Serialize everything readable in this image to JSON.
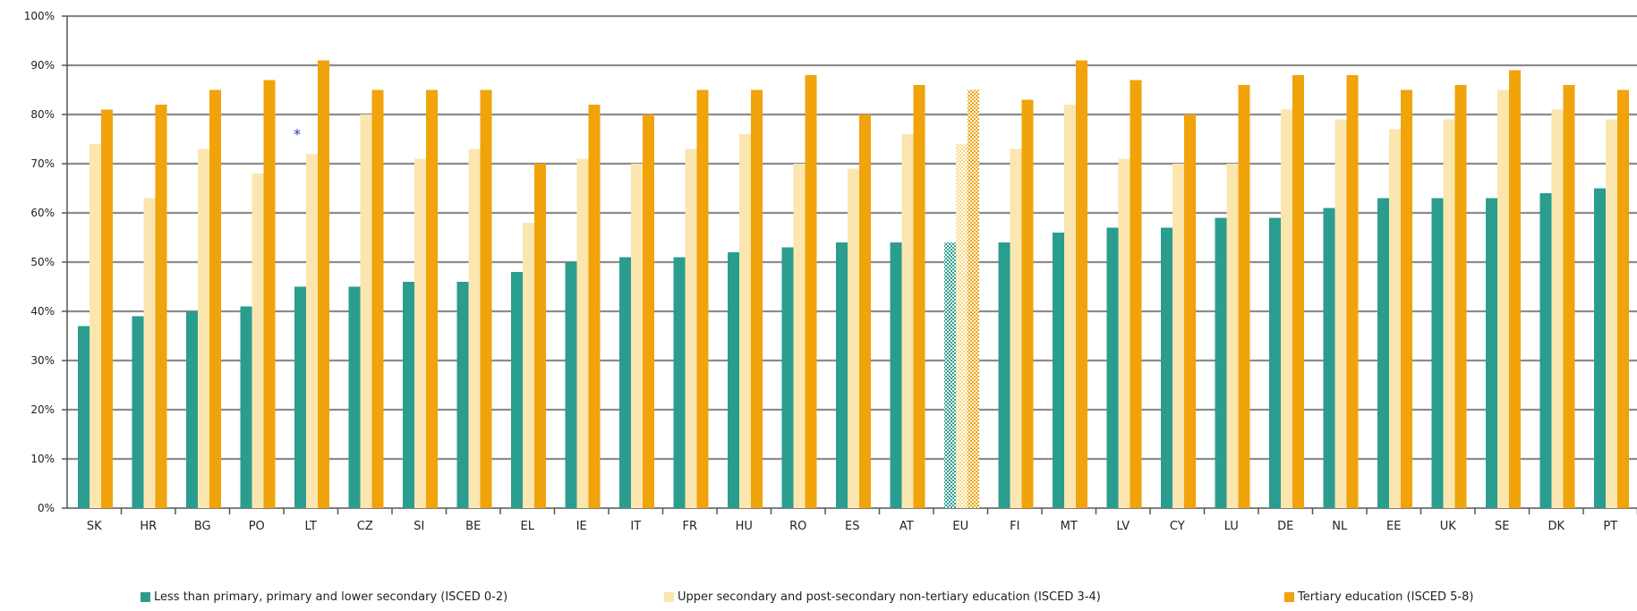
{
  "chart_data": {
    "type": "bar",
    "categories": [
      "SK",
      "HR",
      "BG",
      "PO",
      "LT",
      "CZ",
      "SI",
      "BE",
      "EL",
      "IE",
      "IT",
      "FR",
      "HU",
      "RO",
      "ES",
      "AT",
      "EU",
      "FI",
      "MT",
      "LV",
      "CY",
      "LU",
      "DE",
      "NL",
      "EE",
      "UK",
      "SE",
      "DK",
      "PT"
    ],
    "series": [
      {
        "name": "Less than primary, primary and lower secondary (ISCED 0-2)",
        "values": [
          37,
          39,
          40,
          41,
          45,
          45,
          46,
          46,
          48,
          50,
          51,
          51,
          52,
          53,
          54,
          54,
          54,
          54,
          56,
          57,
          57,
          59,
          59,
          61,
          63,
          63,
          63,
          64,
          65
        ]
      },
      {
        "name": "Upper secondary and post-secondary non-tertiary education (ISCED 3-4)",
        "values": [
          74,
          63,
          73,
          68,
          72,
          80,
          71,
          73,
          58,
          71,
          70,
          73,
          76,
          70,
          69,
          76,
          74,
          73,
          82,
          71,
          70,
          70,
          81,
          79,
          77,
          79,
          85,
          81,
          79
        ]
      },
      {
        "name": "Tertiary education (ISCED 5-8)",
        "values": [
          81,
          82,
          85,
          87,
          91,
          85,
          85,
          85,
          70,
          82,
          80,
          85,
          85,
          88,
          80,
          86,
          85,
          83,
          91,
          87,
          80,
          86,
          88,
          88,
          85,
          86,
          89,
          86,
          85
        ]
      }
    ],
    "highlight_category": "EU",
    "annotations": [
      {
        "category": "LT",
        "text": "*"
      }
    ],
    "ylim": [
      0,
      100
    ],
    "yticks": [
      "0%",
      "10%",
      "20%",
      "30%",
      "40%",
      "50%",
      "60%",
      "70%",
      "80%",
      "90%",
      "100%"
    ],
    "grid": true,
    "legend_position": "bottom",
    "colors": [
      "#2a9d8f",
      "#fbe6b0",
      "#f0a30a"
    ]
  }
}
